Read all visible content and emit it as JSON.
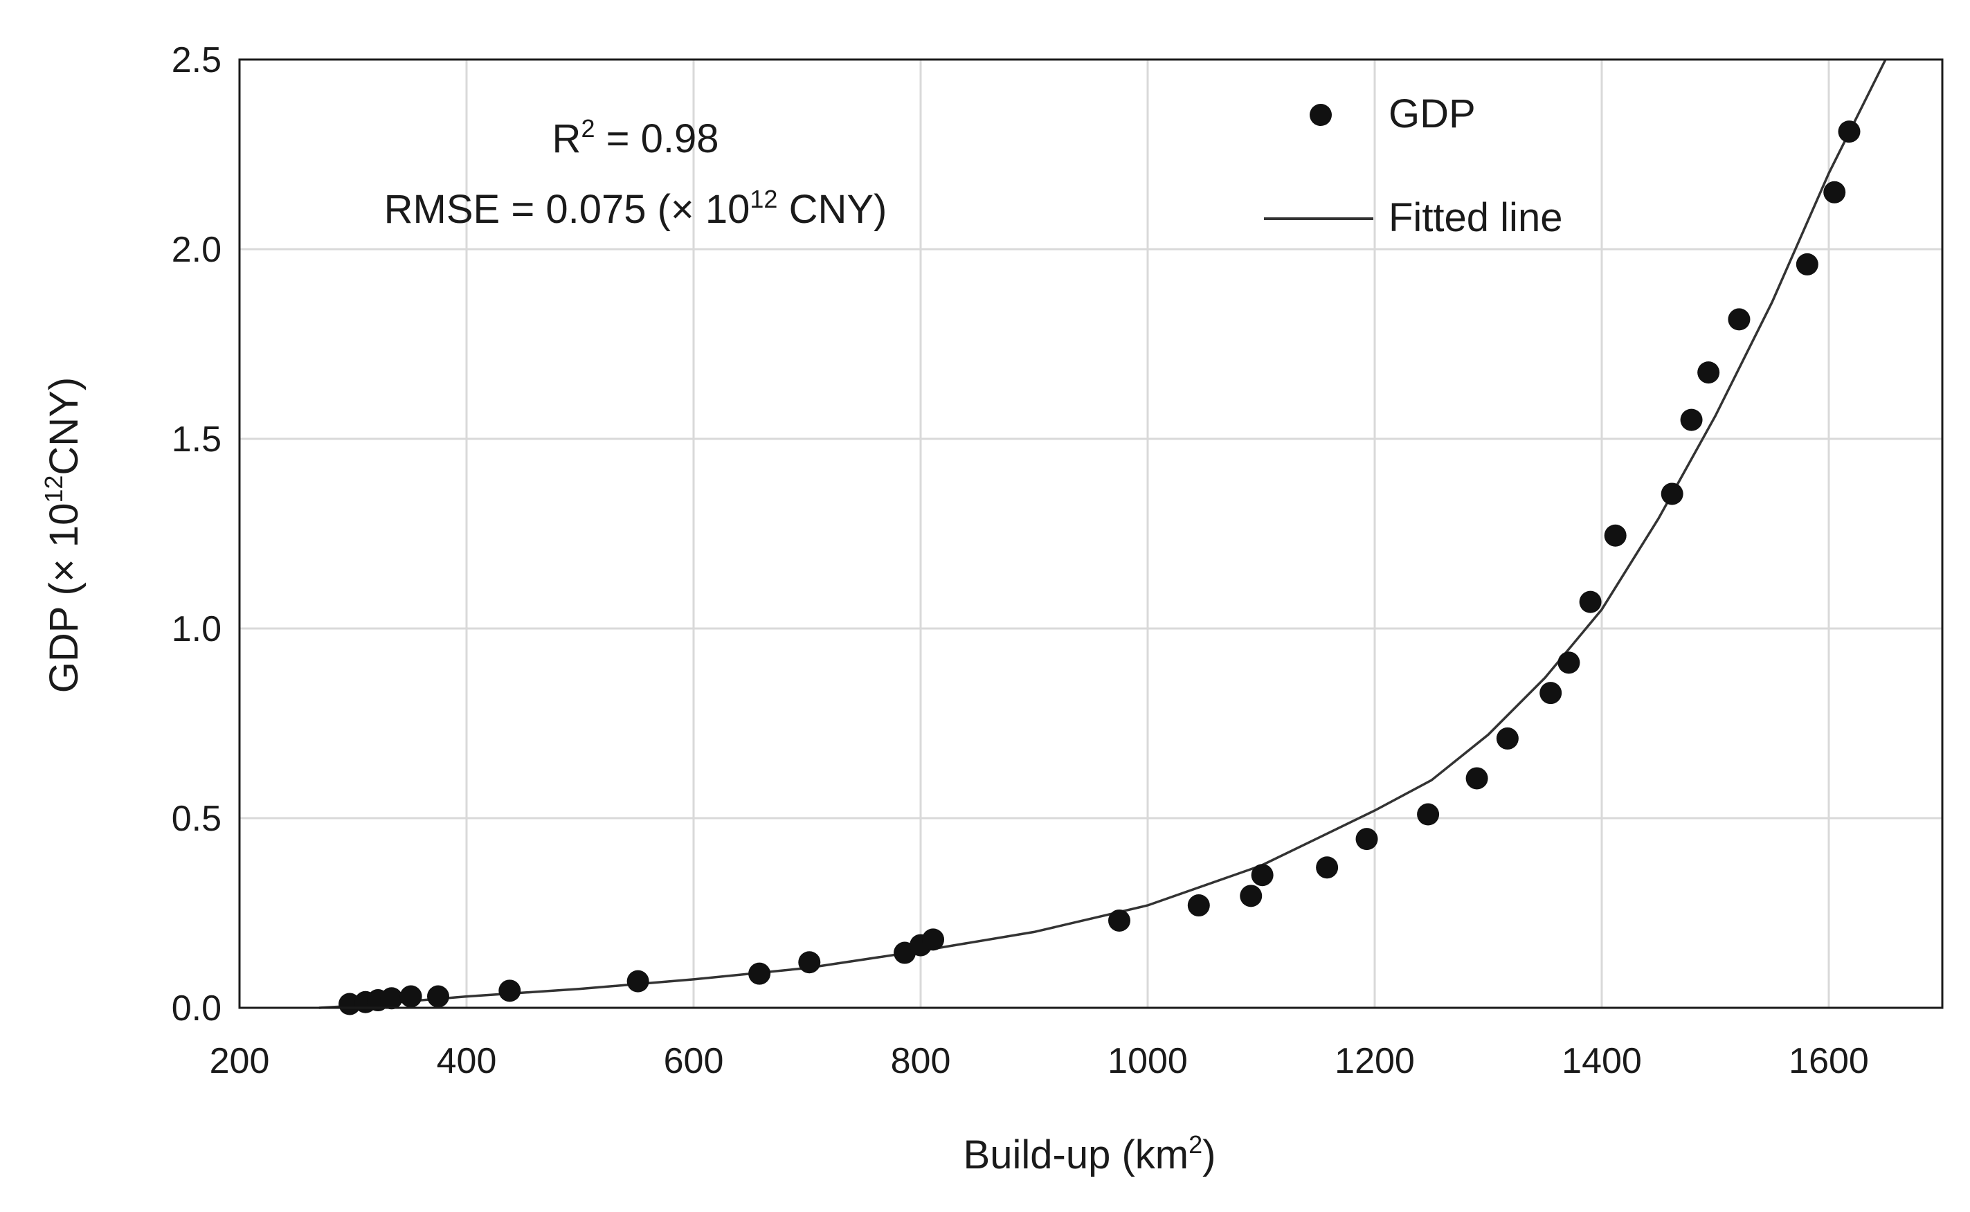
{
  "chart_data": {
    "type": "scatter",
    "title": "",
    "xlabel": {
      "main": "Build-up (km",
      "sup": "2",
      "close": ")"
    },
    "ylabel": {
      "main": "GDP (× 10",
      "sup": "12",
      "unit": "CNY)"
    },
    "xlim": [
      200,
      1700
    ],
    "ylim": [
      0,
      2.5
    ],
    "x_ticks": [
      200,
      400,
      600,
      800,
      1000,
      1200,
      1400,
      1600
    ],
    "x_tick_labels": [
      "200",
      "400",
      "600",
      "800",
      "1000",
      "1200",
      "1400",
      "1600"
    ],
    "y_ticks": [
      0,
      0.5,
      1.0,
      1.5,
      2.0,
      2.5
    ],
    "y_tick_labels": [
      "0.0",
      "0.5",
      "1.0",
      "1.5",
      "2.0",
      "2.5"
    ],
    "grid": true,
    "legend": {
      "position": "top-right",
      "entries": [
        {
          "label": "GDP",
          "marker": "dot"
        },
        {
          "label": "Fitted line",
          "marker": "line"
        }
      ]
    },
    "annotations": {
      "r2_label": "R",
      "r2_sup": "2",
      "r2_value": " = 0.98",
      "rmse_prefix": "RMSE = 0.075 (× 10",
      "rmse_sup": "12",
      "rmse_suffix": " CNY)"
    },
    "series": [
      {
        "name": "GDP",
        "type": "scatter",
        "points": [
          [
            297,
            0.01
          ],
          [
            311,
            0.015
          ],
          [
            322,
            0.02
          ],
          [
            334,
            0.025
          ],
          [
            351,
            0.03
          ],
          [
            375,
            0.03
          ],
          [
            438,
            0.045
          ],
          [
            551,
            0.07
          ],
          [
            658,
            0.09
          ],
          [
            702,
            0.12
          ],
          [
            786,
            0.145
          ],
          [
            800,
            0.165
          ],
          [
            811,
            0.18
          ],
          [
            975,
            0.23
          ],
          [
            1045,
            0.27
          ],
          [
            1091,
            0.295
          ],
          [
            1101,
            0.35
          ],
          [
            1158,
            0.37
          ],
          [
            1193,
            0.445
          ],
          [
            1247,
            0.51
          ],
          [
            1290,
            0.605
          ],
          [
            1317,
            0.71
          ],
          [
            1355,
            0.83
          ],
          [
            1371,
            0.91
          ],
          [
            1390,
            1.07
          ],
          [
            1412,
            1.245
          ],
          [
            1462,
            1.355
          ],
          [
            1479,
            1.55
          ],
          [
            1494,
            1.675
          ],
          [
            1521,
            1.815
          ],
          [
            1581,
            1.96
          ],
          [
            1605,
            2.15
          ],
          [
            1618,
            2.31
          ]
        ]
      },
      {
        "name": "Fitted line",
        "type": "line",
        "points": [
          [
            270,
            0.0
          ],
          [
            300,
            0.005
          ],
          [
            400,
            0.03
          ],
          [
            500,
            0.05
          ],
          [
            600,
            0.075
          ],
          [
            700,
            0.105
          ],
          [
            800,
            0.15
          ],
          [
            900,
            0.2
          ],
          [
            1000,
            0.27
          ],
          [
            1100,
            0.375
          ],
          [
            1200,
            0.52
          ],
          [
            1250,
            0.6
          ],
          [
            1300,
            0.72
          ],
          [
            1350,
            0.87
          ],
          [
            1400,
            1.05
          ],
          [
            1450,
            1.29
          ],
          [
            1500,
            1.56
          ],
          [
            1550,
            1.86
          ],
          [
            1600,
            2.2
          ],
          [
            1650,
            2.5
          ]
        ]
      }
    ]
  }
}
